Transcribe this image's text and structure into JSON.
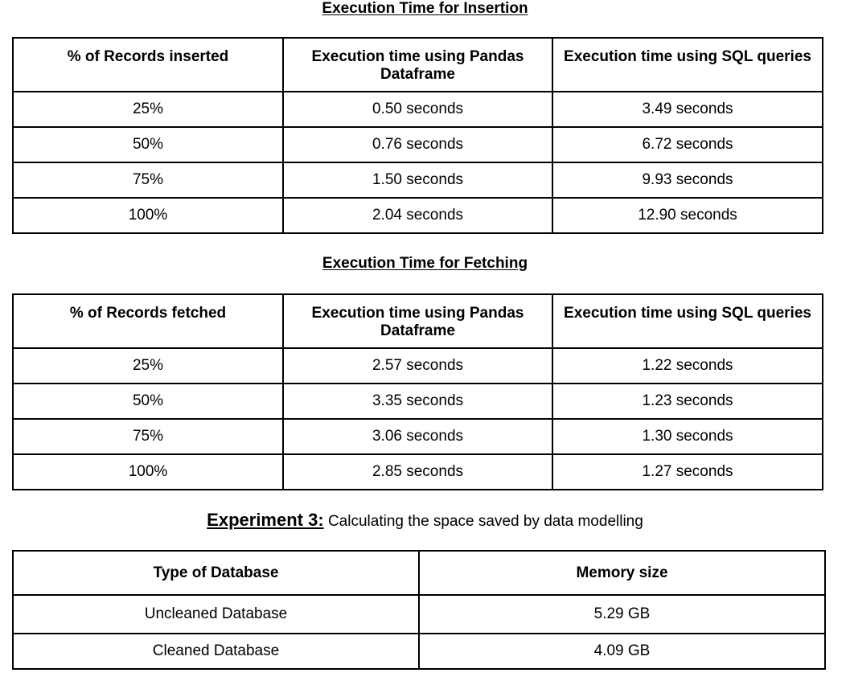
{
  "insertion": {
    "title": "Execution Time for Insertion",
    "headers": [
      "% of Records inserted",
      "Execution time using Pandas Dataframe",
      "Execution time using SQL queries"
    ],
    "rows": [
      [
        "25%",
        "0.50 seconds",
        "3.49 seconds"
      ],
      [
        "50%",
        "0.76 seconds",
        "6.72 seconds"
      ],
      [
        "75%",
        "1.50 seconds",
        "9.93 seconds"
      ],
      [
        "100%",
        "2.04 seconds",
        "12.90 seconds"
      ]
    ]
  },
  "fetching": {
    "title": "Execution Time for Fetching",
    "headers": [
      "% of Records fetched",
      "Execution time using Pandas Dataframe",
      "Execution time using SQL queries"
    ],
    "rows": [
      [
        "25%",
        "2.57 seconds",
        "1.22 seconds"
      ],
      [
        "50%",
        "3.35 seconds",
        "1.23 seconds"
      ],
      [
        "75%",
        "3.06 seconds",
        "1.30 seconds"
      ],
      [
        "100%",
        "2.85 seconds",
        "1.27 seconds"
      ]
    ]
  },
  "experiment3": {
    "label": "Experiment 3:",
    "text": " Calculating the space saved by data modelling",
    "headers": [
      "Type of Database",
      "Memory size"
    ],
    "rows": [
      [
        "Uncleaned Database",
        "5.29 GB"
      ],
      [
        "Cleaned Database",
        "4.09 GB"
      ]
    ]
  }
}
